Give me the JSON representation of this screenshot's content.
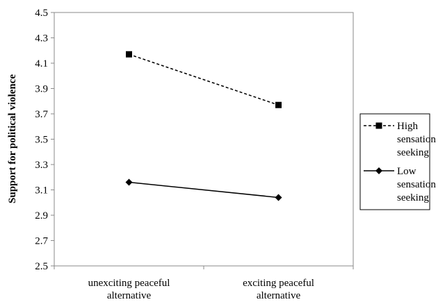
{
  "chart_data": {
    "type": "line",
    "title": "",
    "xlabel": "",
    "ylabel": "Support for political violence",
    "ylim": [
      2.5,
      4.5
    ],
    "yticks": [
      "2.5",
      "2.7",
      "2.9",
      "3.1",
      "3.3",
      "3.5",
      "3.7",
      "3.9",
      "4.1",
      "4.3",
      "4.5"
    ],
    "categories": [
      [
        "unexciting peaceful",
        "alternative"
      ],
      [
        "exciting peaceful",
        "alternative"
      ]
    ],
    "series": [
      {
        "name": [
          "High",
          "sensation",
          "seeking"
        ],
        "values": [
          4.17,
          3.77
        ],
        "line_style": "dashed",
        "marker": "square",
        "color": "#000000"
      },
      {
        "name": [
          "Low",
          "sensation",
          "seeking"
        ],
        "values": [
          3.16,
          3.04
        ],
        "line_style": "solid",
        "marker": "diamond",
        "color": "#000000"
      }
    ],
    "grid": false,
    "legend_position": "right"
  }
}
